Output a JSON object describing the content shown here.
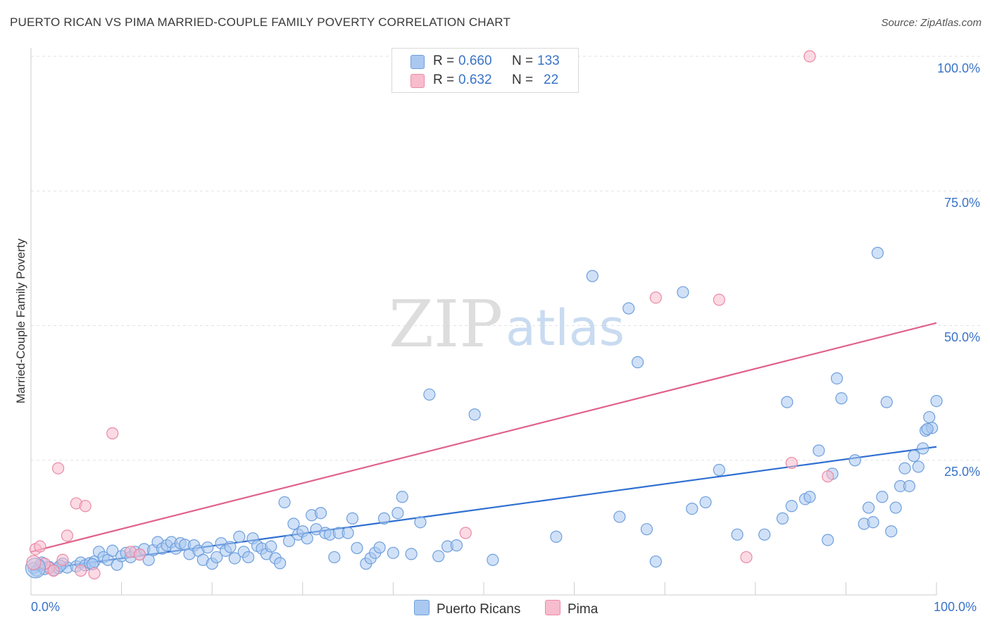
{
  "header": {
    "title": "PUERTO RICAN VS PIMA MARRIED-COUPLE FAMILY POVERTY CORRELATION CHART",
    "source": "Source: ZipAtlas.com"
  },
  "legend": {
    "rows": [
      {
        "r_label": "R =",
        "r_value": "0.660",
        "n_label": "N =",
        "n_value": "133",
        "color": "#aac8f0"
      },
      {
        "r_label": "R =",
        "r_value": "0.632",
        "n_label": "N =",
        "n_value": "22",
        "color": "#f7bccd"
      }
    ]
  },
  "bottom_legend": [
    {
      "label": "Puerto Ricans",
      "color": "#aac8f0"
    },
    {
      "label": "Pima",
      "color": "#f7bccd"
    }
  ],
  "watermark": {
    "part1": "ZIP",
    "part2": "atlas"
  },
  "chart_data": {
    "type": "scatter",
    "title": "PUERTO RICAN VS PIMA MARRIED-COUPLE FAMILY POVERTY CORRELATION CHART",
    "xlabel": "",
    "ylabel": "Married-Couple Family Poverty",
    "xlim": [
      0,
      100
    ],
    "ylim": [
      0,
      100
    ],
    "x_tick_labels": {
      "left": "0.0%",
      "right": "100.0%"
    },
    "y_tick_labels": [
      {
        "value": 100,
        "label": "100.0%"
      },
      {
        "value": 75,
        "label": "75.0%"
      },
      {
        "value": 50,
        "label": "50.0%"
      },
      {
        "value": 25,
        "label": "25.0%"
      }
    ],
    "grid": true,
    "series": [
      {
        "name": "Puerto Ricans",
        "color": "#6f9fdc",
        "fill": "#aac8f0",
        "trend": {
          "x": [
            0,
            100
          ],
          "y": [
            4.5,
            27.5
          ],
          "color": "#2f6fd1"
        },
        "points": [
          [
            0.3,
            5.0
          ],
          [
            0.6,
            4.5
          ],
          [
            1.0,
            5.5
          ],
          [
            1.5,
            4.8
          ],
          [
            2.0,
            5.2
          ],
          [
            2.5,
            4.6
          ],
          [
            3.0,
            5.0
          ],
          [
            3.5,
            5.8
          ],
          [
            4.0,
            5.1
          ],
          [
            5.0,
            5.3
          ],
          [
            5.5,
            6.0
          ],
          [
            6.0,
            5.5
          ],
          [
            6.5,
            5.9
          ],
          [
            7.0,
            6.2
          ],
          [
            7.5,
            8.0
          ],
          [
            8.0,
            7.0
          ],
          [
            8.5,
            6.5
          ],
          [
            9.0,
            8.2
          ],
          [
            9.5,
            5.6
          ],
          [
            10.0,
            7.2
          ],
          [
            10.5,
            7.8
          ],
          [
            11.0,
            7.0
          ],
          [
            11.5,
            8.0
          ],
          [
            12.0,
            7.5
          ],
          [
            12.5,
            8.5
          ],
          [
            13.0,
            6.5
          ],
          [
            13.5,
            8.3
          ],
          [
            14.0,
            9.8
          ],
          [
            14.5,
            8.6
          ],
          [
            15.0,
            9.2
          ],
          [
            15.5,
            9.8
          ],
          [
            16.0,
            8.6
          ],
          [
            16.5,
            9.6
          ],
          [
            17.0,
            9.3
          ],
          [
            17.5,
            7.6
          ],
          [
            18.0,
            9.2
          ],
          [
            18.5,
            8.2
          ],
          [
            19.0,
            6.5
          ],
          [
            19.5,
            8.8
          ],
          [
            20.0,
            5.8
          ],
          [
            20.5,
            7.0
          ],
          [
            21.0,
            9.6
          ],
          [
            21.5,
            8.2
          ],
          [
            22.0,
            8.9
          ],
          [
            22.5,
            6.8
          ],
          [
            23.0,
            10.8
          ],
          [
            23.5,
            8.0
          ],
          [
            24.0,
            7.0
          ],
          [
            24.5,
            10.5
          ],
          [
            25.0,
            9.1
          ],
          [
            25.5,
            8.6
          ],
          [
            26.0,
            7.6
          ],
          [
            26.5,
            9.0
          ],
          [
            27.0,
            6.8
          ],
          [
            27.5,
            5.9
          ],
          [
            28.0,
            17.2
          ],
          [
            28.5,
            10.0
          ],
          [
            29.0,
            13.2
          ],
          [
            29.5,
            11.2
          ],
          [
            30.0,
            11.8
          ],
          [
            30.5,
            10.5
          ],
          [
            31.0,
            14.8
          ],
          [
            31.5,
            12.2
          ],
          [
            32.0,
            15.2
          ],
          [
            32.5,
            11.5
          ],
          [
            33.0,
            11.2
          ],
          [
            33.5,
            7.0
          ],
          [
            34.0,
            11.5
          ],
          [
            35.0,
            11.5
          ],
          [
            35.5,
            14.2
          ],
          [
            36.0,
            8.7
          ],
          [
            37.0,
            5.8
          ],
          [
            37.5,
            6.8
          ],
          [
            38.0,
            7.8
          ],
          [
            38.5,
            8.8
          ],
          [
            39.0,
            14.2
          ],
          [
            40.0,
            7.8
          ],
          [
            40.5,
            15.2
          ],
          [
            41.0,
            18.2
          ],
          [
            42.0,
            7.6
          ],
          [
            43.0,
            13.5
          ],
          [
            44.0,
            37.2
          ],
          [
            45.0,
            7.2
          ],
          [
            46.0,
            9.0
          ],
          [
            47.0,
            9.2
          ],
          [
            49.0,
            33.5
          ],
          [
            51.0,
            6.5
          ],
          [
            58.0,
            10.8
          ],
          [
            62.0,
            59.2
          ],
          [
            65.0,
            14.5
          ],
          [
            66.0,
            53.2
          ],
          [
            67.0,
            43.2
          ],
          [
            68.0,
            12.2
          ],
          [
            69.0,
            6.2
          ],
          [
            72.0,
            56.2
          ],
          [
            73.0,
            16.0
          ],
          [
            74.5,
            17.2
          ],
          [
            76.0,
            23.2
          ],
          [
            78.0,
            11.2
          ],
          [
            81.0,
            11.2
          ],
          [
            83.0,
            14.2
          ],
          [
            83.5,
            35.8
          ],
          [
            84.0,
            16.5
          ],
          [
            85.5,
            17.8
          ],
          [
            86.0,
            18.2
          ],
          [
            87.0,
            26.8
          ],
          [
            88.0,
            10.2
          ],
          [
            88.5,
            22.5
          ],
          [
            89.0,
            40.2
          ],
          [
            89.5,
            36.5
          ],
          [
            91.0,
            25.0
          ],
          [
            92.0,
            13.2
          ],
          [
            92.5,
            16.2
          ],
          [
            93.0,
            13.5
          ],
          [
            93.5,
            63.5
          ],
          [
            94.0,
            18.2
          ],
          [
            94.5,
            35.8
          ],
          [
            95.0,
            11.8
          ],
          [
            95.5,
            16.2
          ],
          [
            96.0,
            20.2
          ],
          [
            96.5,
            23.5
          ],
          [
            97.0,
            20.2
          ],
          [
            97.5,
            25.8
          ],
          [
            98.0,
            23.8
          ],
          [
            98.5,
            27.2
          ],
          [
            98.8,
            30.5
          ],
          [
            99.2,
            33.0
          ],
          [
            99.5,
            31.0
          ],
          [
            100.0,
            36.0
          ],
          [
            99.0,
            30.8
          ],
          [
            1.2,
            6.0
          ],
          [
            3.2,
            5.4
          ],
          [
            6.8,
            5.7
          ]
        ]
      },
      {
        "name": "Pima",
        "color": "#ea8aa6",
        "fill": "#f7bccd",
        "trend": {
          "x": [
            0,
            100
          ],
          "y": [
            8.0,
            50.5
          ],
          "color": "#e0628a"
        },
        "points": [
          [
            0.5,
            8.5
          ],
          [
            1.0,
            9.0
          ],
          [
            2.0,
            5.0
          ],
          [
            2.5,
            4.5
          ],
          [
            3.0,
            23.5
          ],
          [
            3.5,
            6.5
          ],
          [
            4.0,
            11.0
          ],
          [
            5.0,
            17.0
          ],
          [
            5.5,
            4.5
          ],
          [
            6.0,
            16.5
          ],
          [
            7.0,
            4.0
          ],
          [
            9.0,
            30.0
          ],
          [
            11.0,
            8.0
          ],
          [
            12.0,
            7.5
          ],
          [
            48.0,
            11.5
          ],
          [
            69.0,
            55.2
          ],
          [
            76.0,
            54.8
          ],
          [
            79.0,
            7.0
          ],
          [
            84.0,
            24.5
          ],
          [
            86.0,
            100.0
          ],
          [
            88.0,
            22.0
          ],
          [
            1.5,
            5.8
          ]
        ]
      }
    ]
  }
}
